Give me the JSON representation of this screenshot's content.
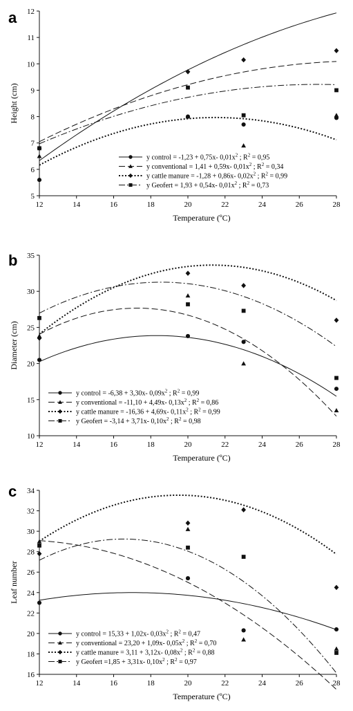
{
  "chart_data": [
    {
      "type": "scatter",
      "panel": "a",
      "xlabel": "Temperature (ºC)",
      "ylabel": "Height (cm)",
      "xlim": [
        12,
        28
      ],
      "ylim": [
        5,
        12
      ],
      "xticks": [
        12,
        14,
        16,
        18,
        20,
        22,
        24,
        26,
        28
      ],
      "yticks": [
        5,
        6,
        7,
        8,
        9,
        10,
        11,
        12
      ],
      "grid": false,
      "legend_position": "bottom-right",
      "series": [
        {
          "key": "control",
          "legend_prefix": "y control",
          "equation": "= -1,23 + 0,75x- 0,01x",
          "r2": "; R",
          "r2_value": "= 0,95",
          "line_style": "solid",
          "marker": "circle",
          "curve": [
            -1.23,
            0.75,
            -0.01
          ],
          "points": [
            {
              "x": 12,
              "y": 5.6
            },
            {
              "x": 20,
              "y": 8.0
            },
            {
              "x": 23,
              "y": 7.7
            },
            {
              "x": 28,
              "y": 7.95
            }
          ]
        },
        {
          "key": "conventional",
          "legend_prefix": "y conventional",
          "equation": "= 1,41 + 0,59x- 0,01x",
          "r2": "; R",
          "r2_value": "= 0,34",
          "line_style": "dashed",
          "marker": "triangle",
          "curve": [
            1.41,
            0.59,
            -0.01
          ],
          "points": [
            {
              "x": 12,
              "y": 6.5
            },
            {
              "x": 20,
              "y": 8.0
            },
            {
              "x": 23,
              "y": 6.9
            },
            {
              "x": 28,
              "y": 8.05
            }
          ]
        },
        {
          "key": "cattle",
          "legend_prefix": "y cattle manure",
          "equation": "= -1,28 + 0,86x- 0,02x",
          "r2": "; R",
          "r2_value": "= 0,99",
          "line_style": "dotted",
          "marker": "diamond",
          "curve": [
            -1.28,
            0.86,
            -0.02
          ],
          "points": [
            {
              "x": 12,
              "y": 6.8
            },
            {
              "x": 20,
              "y": 9.7
            },
            {
              "x": 23,
              "y": 10.15
            },
            {
              "x": 28,
              "y": 10.5
            }
          ]
        },
        {
          "key": "geofert",
          "legend_prefix": "y Geofert",
          "equation": "= 1,93 + 0,54x- 0,01x",
          "r2": "; R",
          "r2_value": "= 0,73",
          "line_style": "dashdot",
          "marker": "square",
          "curve": [
            1.93,
            0.54,
            -0.01
          ],
          "points": [
            {
              "x": 12,
              "y": 6.8
            },
            {
              "x": 20,
              "y": 9.1
            },
            {
              "x": 23,
              "y": 8.05
            },
            {
              "x": 28,
              "y": 9.0
            }
          ]
        }
      ]
    },
    {
      "type": "scatter",
      "panel": "b",
      "xlabel": "Temperature (ºC)",
      "ylabel": "Diameter (cm)",
      "xlim": [
        12,
        28
      ],
      "ylim": [
        10,
        35
      ],
      "xticks": [
        12,
        14,
        16,
        18,
        20,
        22,
        24,
        26,
        28
      ],
      "yticks": [
        10,
        15,
        20,
        25,
        30,
        35
      ],
      "grid": false,
      "legend_position": "bottom-left",
      "series": [
        {
          "key": "control",
          "legend_prefix": "y control",
          "equation": "= -6,38 + 3,30x- 0,09x",
          "r2": "; R",
          "r2_value": "= 0,99",
          "line_style": "solid",
          "marker": "circle",
          "curve": [
            -6.38,
            3.3,
            -0.09
          ],
          "points": [
            {
              "x": 12,
              "y": 20.5
            },
            {
              "x": 20,
              "y": 23.8
            },
            {
              "x": 23,
              "y": 23.0
            },
            {
              "x": 28,
              "y": 16.5
            }
          ]
        },
        {
          "key": "conventional",
          "legend_prefix": "y conventional",
          "equation": "= -11,10 + 4,49x- 0,13x",
          "r2": "; R",
          "r2_value": "= 0,86",
          "line_style": "dashed",
          "marker": "triangle",
          "curve": [
            -11.1,
            4.49,
            -0.13
          ],
          "points": [
            {
              "x": 12,
              "y": 23.8
            },
            {
              "x": 20,
              "y": 29.4
            },
            {
              "x": 23,
              "y": 20.0
            },
            {
              "x": 28,
              "y": 13.5
            }
          ]
        },
        {
          "key": "cattle",
          "legend_prefix": "y cattle manure",
          "equation": "= -16,36 + 4,69x- 0,11x",
          "r2": "; R",
          "r2_value": "= 0,99",
          "line_style": "dotted",
          "marker": "diamond",
          "curve": [
            -16.36,
            4.69,
            -0.11
          ],
          "points": [
            {
              "x": 12,
              "y": 23.5
            },
            {
              "x": 20,
              "y": 32.5
            },
            {
              "x": 23,
              "y": 30.8
            },
            {
              "x": 28,
              "y": 26.0
            }
          ]
        },
        {
          "key": "geofert",
          "legend_prefix": "y Geofert",
          "equation": "= -3,14 + 3,71x- 0,10x",
          "r2": "; R",
          "r2_value": "= 0,98",
          "line_style": "dashdot",
          "marker": "square",
          "curve": [
            -3.14,
            3.71,
            -0.1
          ],
          "points": [
            {
              "x": 12,
              "y": 26.3
            },
            {
              "x": 20,
              "y": 28.2
            },
            {
              "x": 23,
              "y": 27.3
            },
            {
              "x": 28,
              "y": 18.0
            }
          ]
        }
      ]
    },
    {
      "type": "scatter",
      "panel": "c",
      "xlabel": "Temperature (ºC)",
      "ylabel": "Leaf number",
      "xlim": [
        12,
        28
      ],
      "ylim": [
        16,
        34
      ],
      "xticks": [
        12,
        14,
        16,
        18,
        20,
        22,
        24,
        26,
        28
      ],
      "yticks": [
        16,
        18,
        20,
        22,
        24,
        26,
        28,
        30,
        32,
        34
      ],
      "grid": false,
      "legend_position": "bottom-left",
      "series": [
        {
          "key": "control",
          "legend_prefix": "y control",
          "equation": "= 15,33 + 1,02x- 0,03x",
          "r2": "; R",
          "r2_value": "= 0,47",
          "line_style": "solid",
          "marker": "circle",
          "curve": [
            15.33,
            1.02,
            -0.03
          ],
          "points": [
            {
              "x": 12,
              "y": 23.0
            },
            {
              "x": 20,
              "y": 25.4
            },
            {
              "x": 23,
              "y": 20.3
            },
            {
              "x": 28,
              "y": 20.4
            }
          ]
        },
        {
          "key": "conventional",
          "legend_prefix": "y conventional",
          "equation": "= 23,20 + 1,09x- 0,05x",
          "r2": "; R",
          "r2_value": "= 0,70",
          "line_style": "dashed",
          "marker": "triangle",
          "curve": [
            23.2,
            1.09,
            -0.05
          ],
          "points": [
            {
              "x": 12,
              "y": 29.0
            },
            {
              "x": 20,
              "y": 30.2
            },
            {
              "x": 23,
              "y": 19.4
            },
            {
              "x": 28,
              "y": 18.5
            }
          ]
        },
        {
          "key": "cattle",
          "legend_prefix": "y cattle manure",
          "equation": "= 3,11 + 3,12x- 0,08x",
          "r2": "; R",
          "r2_value": "= 0,88",
          "line_style": "dotted",
          "marker": "diamond",
          "curve": [
            3.11,
            3.12,
            -0.08
          ],
          "points": [
            {
              "x": 12,
              "y": 27.8
            },
            {
              "x": 20,
              "y": 30.8
            },
            {
              "x": 23,
              "y": 32.1
            },
            {
              "x": 28,
              "y": 24.5
            }
          ]
        },
        {
          "key": "geofert",
          "legend_prefix": "y Geofert",
          "equation": "=1,85 + 3,31x- 0,10x",
          "r2": "; R",
          "r2_value": "= 0,97",
          "line_style": "dashdot",
          "marker": "square",
          "curve": [
            1.85,
            3.31,
            -0.1
          ],
          "points": [
            {
              "x": 12,
              "y": 28.6
            },
            {
              "x": 20,
              "y": 28.4
            },
            {
              "x": 23,
              "y": 27.5
            },
            {
              "x": 28,
              "y": 18.1
            }
          ]
        }
      ]
    }
  ]
}
